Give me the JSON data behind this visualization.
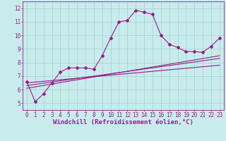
{
  "xlabel": "Windchill (Refroidissement éolien,°C)",
  "bg_color": "#c8ecec",
  "grid_color": "#aad4d4",
  "line_color": "#9b1a8a",
  "xlim": [
    -0.5,
    23.5
  ],
  "ylim": [
    4.5,
    12.5
  ],
  "xticks": [
    0,
    1,
    2,
    3,
    4,
    5,
    6,
    7,
    8,
    9,
    10,
    11,
    12,
    13,
    14,
    15,
    16,
    17,
    18,
    19,
    20,
    21,
    22,
    23
  ],
  "yticks": [
    5,
    6,
    7,
    8,
    9,
    10,
    11,
    12
  ],
  "line1_x": [
    0,
    1,
    2,
    3,
    4,
    5,
    6,
    7,
    8,
    9,
    10,
    11,
    12,
    13,
    14,
    15,
    16,
    17,
    18,
    19,
    20,
    21,
    22,
    23
  ],
  "line1_y": [
    6.6,
    5.1,
    5.7,
    6.5,
    7.3,
    7.6,
    7.6,
    7.6,
    7.5,
    8.5,
    9.8,
    11.0,
    11.1,
    11.85,
    11.7,
    11.55,
    10.0,
    9.35,
    9.1,
    8.8,
    8.8,
    8.75,
    9.2,
    9.8
  ],
  "line2_x": [
    0,
    23
  ],
  "line2_y": [
    6.1,
    8.5
  ],
  "line3_x": [
    0,
    23
  ],
  "line3_y": [
    6.3,
    8.3
  ],
  "line4_x": [
    0,
    23
  ],
  "line4_y": [
    6.5,
    7.8
  ],
  "font_color": "#9b1a8a",
  "tick_fontsize": 5.5,
  "label_fontsize": 6.5
}
